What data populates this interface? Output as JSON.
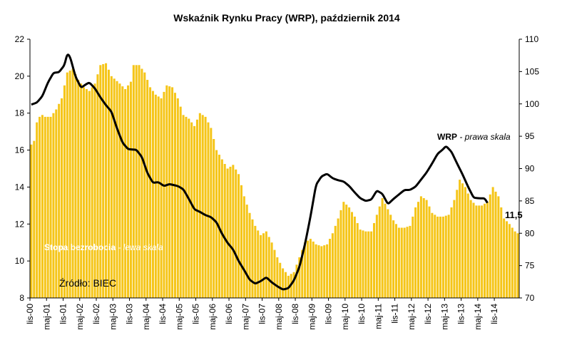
{
  "chart_data": {
    "type": "bar+line",
    "title": "Wskaźnik Rynku Pracy (WRP), październik 2014",
    "x_labels": [
      "lis-00",
      "maj-01",
      "lis-01",
      "maj-02",
      "lis-02",
      "maj-03",
      "lis-03",
      "maj-04",
      "lis-04",
      "maj-05",
      "lis-05",
      "maj-06",
      "lis-06",
      "maj-07",
      "lis-07",
      "maj-08",
      "lis-08",
      "maj-09",
      "lis-09",
      "maj-10",
      "lis-10",
      "maj-11",
      "lis-11",
      "maj-12",
      "lis-12",
      "maj-13",
      "lis-13",
      "maj-14",
      "lis-14"
    ],
    "left_axis": {
      "ylim": [
        8,
        22
      ],
      "ticks": [
        8,
        10,
        12,
        14,
        16,
        18,
        20,
        22
      ]
    },
    "right_axis": {
      "ylim": [
        70,
        110
      ],
      "ticks": [
        70,
        75,
        80,
        85,
        90,
        95,
        100,
        105,
        110
      ]
    },
    "series": [
      {
        "name": "Stopa bezrobocia",
        "axis": "left",
        "kind": "bar",
        "color": "#F5C518",
        "anchors": [
          [
            0,
            16.3
          ],
          [
            1,
            16.5
          ],
          [
            2,
            17.5
          ],
          [
            3,
            17.8
          ],
          [
            4,
            17.9
          ],
          [
            5,
            17.8
          ],
          [
            7,
            17.8
          ],
          [
            9,
            18.2
          ],
          [
            11,
            18.8
          ],
          [
            13,
            20.2
          ],
          [
            15,
            20.4
          ],
          [
            17,
            19.8
          ],
          [
            19,
            19.4
          ],
          [
            21,
            19.2
          ],
          [
            23,
            19.6
          ],
          [
            25,
            20.6
          ],
          [
            27,
            20.7
          ],
          [
            29,
            20.0
          ],
          [
            32,
            19.6
          ],
          [
            34,
            19.3
          ],
          [
            36,
            19.7
          ],
          [
            37,
            20.6
          ],
          [
            39,
            20.6
          ],
          [
            41,
            20.2
          ],
          [
            43,
            19.4
          ],
          [
            45,
            19.0
          ],
          [
            47,
            18.8
          ],
          [
            49,
            19.5
          ],
          [
            51,
            19.4
          ],
          [
            53,
            18.8
          ],
          [
            55,
            17.9
          ],
          [
            57,
            17.7
          ],
          [
            59,
            17.3
          ],
          [
            61,
            18.0
          ],
          [
            63,
            17.8
          ],
          [
            65,
            17.2
          ],
          [
            67,
            16.0
          ],
          [
            69,
            15.5
          ],
          [
            71,
            15.0
          ],
          [
            73,
            15.2
          ],
          [
            75,
            14.7
          ],
          [
            77,
            13.5
          ],
          [
            79,
            12.6
          ],
          [
            81,
            11.9
          ],
          [
            83,
            11.4
          ],
          [
            85,
            11.6
          ],
          [
            87,
            11.0
          ],
          [
            89,
            10.2
          ],
          [
            91,
            9.6
          ],
          [
            93,
            9.2
          ],
          [
            95,
            9.4
          ],
          [
            97,
            10.2
          ],
          [
            99,
            11.0
          ],
          [
            101,
            11.2
          ],
          [
            103,
            10.9
          ],
          [
            105,
            10.8
          ],
          [
            107,
            10.9
          ],
          [
            109,
            11.5
          ],
          [
            111,
            12.3
          ],
          [
            113,
            13.2
          ],
          [
            115,
            12.9
          ],
          [
            117,
            12.4
          ],
          [
            119,
            11.7
          ],
          [
            121,
            11.6
          ],
          [
            123,
            11.6
          ],
          [
            125,
            12.5
          ],
          [
            127,
            13.4
          ],
          [
            129,
            12.8
          ],
          [
            131,
            12.2
          ],
          [
            133,
            11.8
          ],
          [
            135,
            11.8
          ],
          [
            137,
            11.9
          ],
          [
            139,
            12.9
          ],
          [
            141,
            13.5
          ],
          [
            143,
            13.3
          ],
          [
            145,
            12.6
          ],
          [
            147,
            12.4
          ],
          [
            149,
            12.4
          ],
          [
            151,
            12.5
          ],
          [
            153,
            13.3
          ],
          [
            155,
            14.4
          ],
          [
            157,
            14.0
          ],
          [
            159,
            13.3
          ],
          [
            161,
            13.0
          ],
          [
            163,
            13.0
          ],
          [
            165,
            13.2
          ],
          [
            167,
            14.0
          ],
          [
            169,
            13.5
          ],
          [
            171,
            12.3
          ],
          [
            173,
            12.0
          ],
          [
            175,
            11.6
          ],
          [
            176,
            11.5
          ]
        ]
      },
      {
        "name": "WRP",
        "axis": "right",
        "kind": "line",
        "color": "#000000",
        "anchors": [
          [
            0,
            99.9
          ],
          [
            2,
            100.2
          ],
          [
            4,
            101.2
          ],
          [
            6,
            103.3
          ],
          [
            8,
            104.8
          ],
          [
            10,
            104.9
          ],
          [
            12,
            106.0
          ],
          [
            13,
            107.8
          ],
          [
            14,
            107.3
          ],
          [
            16,
            104.2
          ],
          [
            18,
            102.5
          ],
          [
            20,
            103.1
          ],
          [
            21,
            103.3
          ],
          [
            23,
            102.4
          ],
          [
            25,
            101.0
          ],
          [
            27,
            99.8
          ],
          [
            29,
            98.8
          ],
          [
            31,
            96.2
          ],
          [
            33,
            94.0
          ],
          [
            35,
            93.0
          ],
          [
            38,
            92.9
          ],
          [
            40,
            91.8
          ],
          [
            42,
            89.3
          ],
          [
            44,
            87.8
          ],
          [
            46,
            87.9
          ],
          [
            48,
            87.3
          ],
          [
            50,
            87.6
          ],
          [
            53,
            87.3
          ],
          [
            55,
            86.8
          ],
          [
            57,
            85.3
          ],
          [
            59,
            83.7
          ],
          [
            61,
            83.3
          ],
          [
            63,
            82.8
          ],
          [
            65,
            82.5
          ],
          [
            67,
            81.7
          ],
          [
            69,
            79.9
          ],
          [
            71,
            78.5
          ],
          [
            73,
            77.5
          ],
          [
            75,
            75.7
          ],
          [
            77,
            74.3
          ],
          [
            79,
            72.8
          ],
          [
            81,
            72.2
          ],
          [
            83,
            72.6
          ],
          [
            85,
            73.2
          ],
          [
            87,
            72.4
          ],
          [
            89,
            71.8
          ],
          [
            91,
            71.3
          ],
          [
            93,
            71.5
          ],
          [
            95,
            72.7
          ],
          [
            97,
            74.8
          ],
          [
            99,
            78.3
          ],
          [
            101,
            82.6
          ],
          [
            103,
            87.5
          ],
          [
            105,
            88.8
          ],
          [
            107,
            89.2
          ],
          [
            109,
            88.5
          ],
          [
            111,
            88.2
          ],
          [
            113,
            88.0
          ],
          [
            115,
            87.3
          ],
          [
            117,
            86.3
          ],
          [
            119,
            85.4
          ],
          [
            121,
            85.0
          ],
          [
            123,
            85.2
          ],
          [
            125,
            86.6
          ],
          [
            127,
            86.1
          ],
          [
            129,
            84.5
          ],
          [
            131,
            85.3
          ],
          [
            133,
            86.0
          ],
          [
            135,
            86.7
          ],
          [
            137,
            86.7
          ],
          [
            139,
            87.2
          ],
          [
            141,
            88.3
          ],
          [
            143,
            89.4
          ],
          [
            145,
            90.8
          ],
          [
            147,
            92.3
          ],
          [
            149,
            93.0
          ],
          [
            150,
            93.5
          ],
          [
            152,
            92.6
          ],
          [
            154,
            90.8
          ],
          [
            156,
            89.1
          ],
          [
            158,
            87.2
          ],
          [
            160,
            85.5
          ],
          [
            162,
            85.4
          ],
          [
            164,
            85.4
          ],
          [
            165,
            84.7
          ]
        ]
      }
    ],
    "annotations": [
      {
        "text_bold": "WRP",
        "text_italic": " - prawa skala"
      },
      {
        "text_bold": "Stopa bezrobocia",
        "text_italic": " - lewa skala"
      },
      {
        "text": "Źródło: BIEC"
      },
      {
        "text": "11,5"
      }
    ]
  }
}
